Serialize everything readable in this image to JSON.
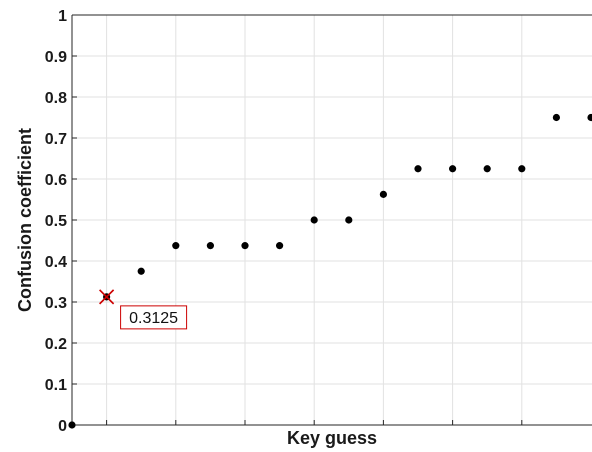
{
  "chart_data": {
    "type": "scatter",
    "title": "",
    "xlabel": "Key guess",
    "ylabel": "Confusion coefficient",
    "ylim": [
      0,
      1
    ],
    "y_ticks": [
      0,
      0.1,
      0.2,
      0.3,
      0.4,
      0.5,
      0.6,
      0.7,
      0.8,
      0.9,
      1
    ],
    "y_tick_labels": [
      "0",
      "0.1",
      "0.2",
      "0.3",
      "0.4",
      "0.5",
      "0.6",
      "0.7",
      "0.8",
      "0.9",
      "1"
    ],
    "x_tick_labels": [],
    "grid": true,
    "marker_color": "#000000",
    "highlight_color": "#cc0000",
    "points": [
      {
        "x": 0,
        "y": 0
      },
      {
        "x": 1,
        "y": 0.3125
      },
      {
        "x": 2,
        "y": 0.375
      },
      {
        "x": 3,
        "y": 0.4375
      },
      {
        "x": 4,
        "y": 0.4375
      },
      {
        "x": 5,
        "y": 0.4375
      },
      {
        "x": 6,
        "y": 0.4375
      },
      {
        "x": 7,
        "y": 0.5
      },
      {
        "x": 8,
        "y": 0.5
      },
      {
        "x": 9,
        "y": 0.5625
      },
      {
        "x": 10,
        "y": 0.625
      },
      {
        "x": 11,
        "y": 0.625
      },
      {
        "x": 12,
        "y": 0.625
      },
      {
        "x": 13,
        "y": 0.625
      },
      {
        "x": 14,
        "y": 0.75
      },
      {
        "x": 15,
        "y": 0.75
      }
    ],
    "annotation": {
      "x": 1,
      "y": 0.3125,
      "text": "0.3125"
    }
  }
}
